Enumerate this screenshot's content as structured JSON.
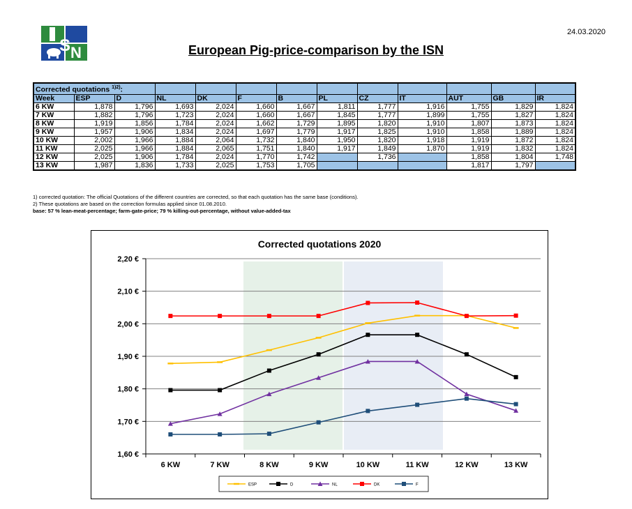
{
  "header": {
    "date": "24.03.2020",
    "title": "European Pig-price-comparison by the ISN",
    "logo_text": "ISN"
  },
  "table": {
    "caption": "Corrected quotations",
    "caption_sup": "1)2)",
    "caption_suffix": ":",
    "columns": [
      "Week",
      "ESP",
      "D",
      "NL",
      "DK",
      "F",
      "B",
      "PL",
      "CZ",
      "IT",
      "AUT",
      "GB",
      "IR"
    ],
    "rows": [
      [
        "6 KW",
        "1,878",
        "1,796",
        "1,693",
        "2,024",
        "1,660",
        "1,667",
        "1,811",
        "1,777",
        "1,916",
        "1,755",
        "1,829",
        "1,824"
      ],
      [
        "7 KW",
        "1,882",
        "1,796",
        "1,723",
        "2,024",
        "1,660",
        "1,667",
        "1,845",
        "1,777",
        "1,899",
        "1,755",
        "1,827",
        "1,824"
      ],
      [
        "8 KW",
        "1,919",
        "1,856",
        "1,784",
        "2,024",
        "1,662",
        "1,729",
        "1,895",
        "1,820",
        "1,910",
        "1,807",
        "1,873",
        "1,824"
      ],
      [
        "9 KW",
        "1,957",
        "1,906",
        "1,834",
        "2,024",
        "1,697",
        "1,779",
        "1,917",
        "1,825",
        "1,910",
        "1,858",
        "1,889",
        "1,824"
      ],
      [
        "10 KW",
        "2,002",
        "1,966",
        "1,884",
        "2,064",
        "1,732",
        "1,840",
        "1,950",
        "1,820",
        "1,918",
        "1,919",
        "1,872",
        "1,824"
      ],
      [
        "11 KW",
        "2,025",
        "1,966",
        "1,884",
        "2,065",
        "1,751",
        "1,840",
        "1,917",
        "1,849",
        "1,870",
        "1,919",
        "1,832",
        "1,824"
      ],
      [
        "12 KW",
        "2,025",
        "1,906",
        "1,784",
        "2,024",
        "1,770",
        "1,742",
        "",
        "1,736",
        "",
        "1,858",
        "1,804",
        "1,748"
      ],
      [
        "13 KW",
        "1,987",
        "1,836",
        "1,733",
        "2,025",
        "1,753",
        "1,705",
        "",
        "",
        "",
        "1,817",
        "1,797",
        ""
      ]
    ]
  },
  "notes": {
    "note1": "1) corrected quotation: The official Quotations of the different countries are corrected, so that each quotation has the same base (conditions).",
    "note2": "2) These quotations are based on the correction formulas applied since 01.08.2010.",
    "base": "base: 57 % lean-meat-percentage; farm-gate-price; 79 % killing-out-percentage, without value-added-tax"
  },
  "chart_data": {
    "type": "line",
    "title": "Corrected quotations 2020",
    "categories": [
      "6 KW",
      "7 KW",
      "8 KW",
      "9 KW",
      "10 KW",
      "11 KW",
      "12 KW",
      "13 KW"
    ],
    "ylim": [
      1.6,
      2.2
    ],
    "yticks": [
      {
        "value": 2.2,
        "label": "2,20 €"
      },
      {
        "value": 2.1,
        "label": "2,10 €"
      },
      {
        "value": 2.0,
        "label": "2,00 €"
      },
      {
        "value": 1.9,
        "label": "1,90 €"
      },
      {
        "value": 1.8,
        "label": "1,80 €"
      },
      {
        "value": 1.7,
        "label": "1,70 €"
      },
      {
        "value": 1.6,
        "label": "1,60 €"
      }
    ],
    "grid": true,
    "legend_position": "bottom",
    "series": [
      {
        "name": "ESP",
        "color": "#ffc000",
        "marker": "dash",
        "values": [
          1.878,
          1.882,
          1.919,
          1.957,
          2.002,
          2.025,
          2.025,
          1.987
        ]
      },
      {
        "name": "D",
        "color": "#000000",
        "marker": "square",
        "values": [
          1.796,
          1.796,
          1.856,
          1.906,
          1.966,
          1.966,
          1.906,
          1.836
        ]
      },
      {
        "name": "NL",
        "color": "#7030a0",
        "marker": "triangle",
        "values": [
          1.693,
          1.723,
          1.784,
          1.834,
          1.884,
          1.884,
          1.784,
          1.733
        ]
      },
      {
        "name": "DK",
        "color": "#ff0000",
        "marker": "square",
        "line": false,
        "values": [
          2.024,
          2.024,
          2.024,
          2.024,
          2.064,
          2.065,
          2.024,
          2.025
        ]
      },
      {
        "name": "F",
        "color": "#1f4e79",
        "marker": "square",
        "values": [
          1.66,
          1.66,
          1.662,
          1.697,
          1.732,
          1.751,
          1.77,
          1.753
        ]
      }
    ]
  }
}
